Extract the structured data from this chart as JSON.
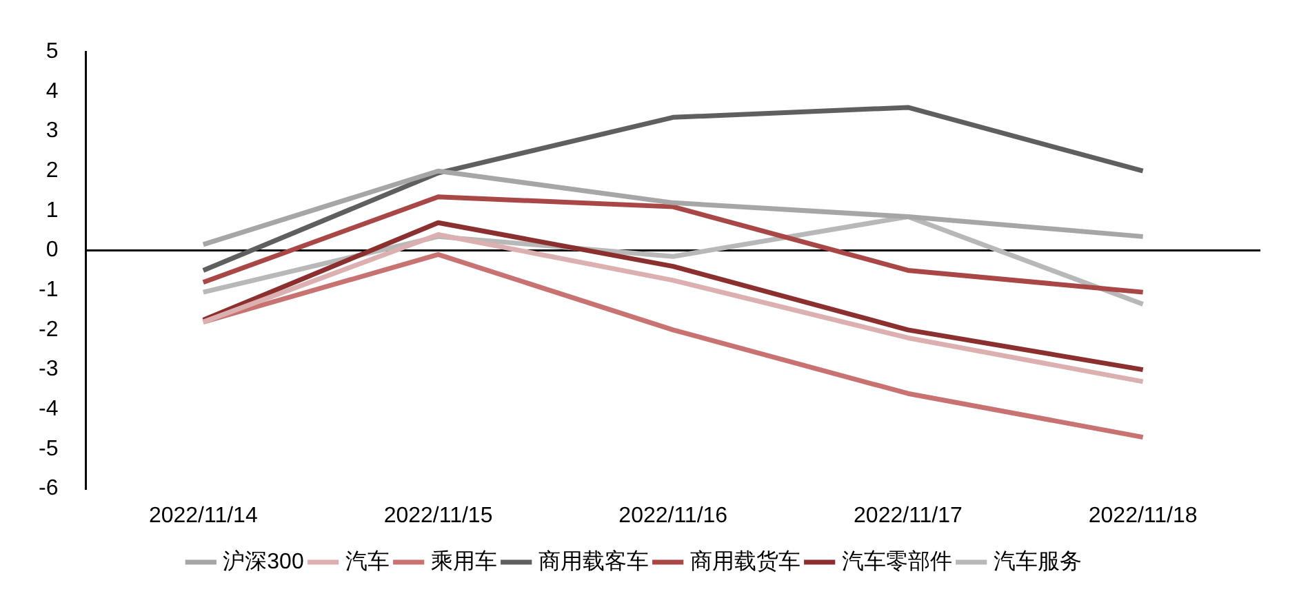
{
  "chart_data": {
    "type": "line",
    "categories": [
      "2022/11/14",
      "2022/11/15",
      "2022/11/16",
      "2022/11/17",
      "2022/11/18"
    ],
    "series": [
      {
        "name": "沪深300",
        "color": "#a6a6a6",
        "values": [
          0.15,
          2.0,
          1.2,
          0.85,
          0.35
        ]
      },
      {
        "name": "汽车",
        "color": "#dcb0b0",
        "values": [
          -1.8,
          0.4,
          -0.75,
          -2.2,
          -3.3
        ]
      },
      {
        "name": "乘用车",
        "color": "#c87272",
        "values": [
          -1.8,
          -0.1,
          -2.0,
          -3.6,
          -4.7
        ]
      },
      {
        "name": "商用载客车",
        "color": "#5f5f5f",
        "values": [
          -0.5,
          1.95,
          3.35,
          3.6,
          2.0
        ]
      },
      {
        "name": "商用载货车",
        "color": "#a94646",
        "values": [
          -0.8,
          1.35,
          1.1,
          -0.5,
          -1.05
        ]
      },
      {
        "name": "汽车零部件",
        "color": "#8b2f2f",
        "values": [
          -1.75,
          0.7,
          -0.4,
          -2.0,
          -3.0
        ]
      },
      {
        "name": "汽车服务",
        "color": "#b8b8b8",
        "values": [
          -1.05,
          0.35,
          -0.15,
          0.85,
          -1.35
        ]
      }
    ],
    "ylim": [
      -6,
      5
    ],
    "yticks": [
      -6,
      -5,
      -4,
      -3,
      -2,
      -1,
      0,
      1,
      2,
      3,
      4,
      5
    ],
    "ref_lines": [
      {
        "axis": "y",
        "value": 0,
        "color": "#000000"
      }
    ],
    "grid": false,
    "legend": "bottom",
    "marker": "none",
    "line_style": "solid"
  }
}
